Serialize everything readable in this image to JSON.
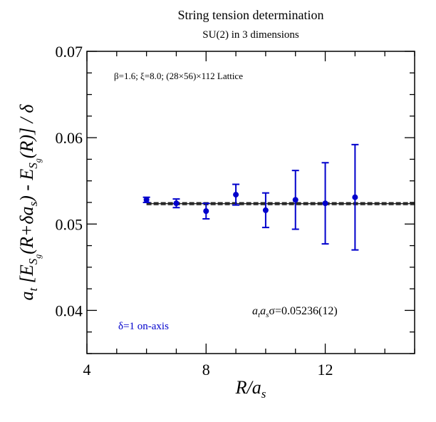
{
  "chart_data": {
    "type": "scatter",
    "title": "String tension determination",
    "subtitle": "SU(2) in 3 dimensions",
    "xlabel": "R/a_s",
    "ylabel": "a_t [E_Sg(R+δa_s) - E_Sg(R)] / δ",
    "xlim": [
      4,
      15
    ],
    "ylim": [
      0.035,
      0.07
    ],
    "xticks": [
      4,
      8,
      12
    ],
    "xtick_labels": [
      "4",
      "8",
      "12"
    ],
    "yticks": [
      0.04,
      0.05,
      0.06,
      0.07
    ],
    "ytick_labels": [
      "0.04",
      "0.05",
      "0.06",
      "0.07"
    ],
    "grid": false,
    "annotation": "β=1.6;  ξ=8.0; (28×56)×112 Lattice",
    "fit_label": "a_t a_s σ=0.05236(12)",
    "fit_value": 0.05236,
    "fit_error": 0.00012,
    "fit_range": [
      6,
      15
    ],
    "legend": "δ=1 on-axis",
    "series_color": "#0000cc",
    "series": [
      {
        "x": [
          6,
          7,
          8,
          9,
          10,
          11,
          12,
          13
        ],
        "y": [
          0.0528,
          0.0524,
          0.0515,
          0.0534,
          0.0516,
          0.0528,
          0.0524,
          0.0531
        ],
        "err": [
          0.0003,
          0.0005,
          0.0009,
          0.0012,
          0.002,
          0.0034,
          0.0047,
          0.0061
        ]
      }
    ]
  }
}
